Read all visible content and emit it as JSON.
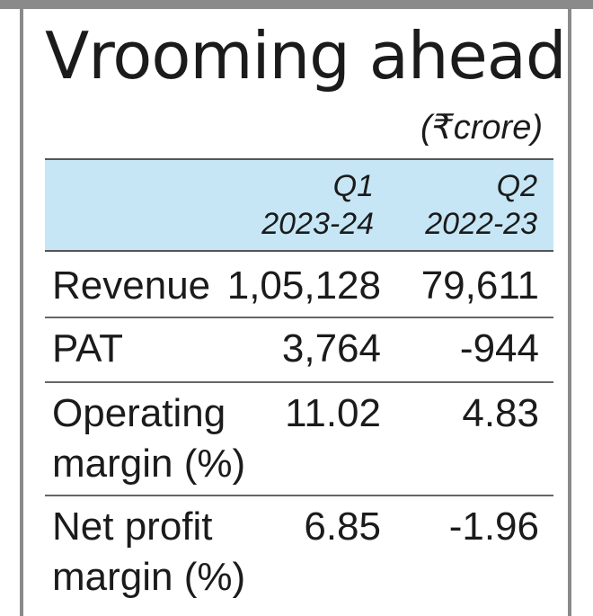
{
  "chart_data": {
    "type": "table",
    "title": "Vrooming ahead",
    "unit": "(₹crore)",
    "columns": [
      {
        "line1": "Q1",
        "line2": "2023-24"
      },
      {
        "line1": "Q2",
        "line2": "2022-23"
      }
    ],
    "rows": [
      {
        "label": [
          "Revenue"
        ],
        "values": [
          "1,05,128",
          "79,611"
        ]
      },
      {
        "label": [
          "PAT"
        ],
        "values": [
          "3,764",
          "-944"
        ]
      },
      {
        "label": [
          "Operating",
          "margin (%)"
        ],
        "values": [
          "11.02",
          "4.83"
        ]
      },
      {
        "label": [
          "Net profit",
          "margin (%)"
        ],
        "values": [
          "6.85",
          "-1.96"
        ]
      }
    ]
  },
  "colors": {
    "header_band": "#c6e6f6",
    "frame_rule": "#8a8a8a",
    "text": "#1b1b1b"
  }
}
